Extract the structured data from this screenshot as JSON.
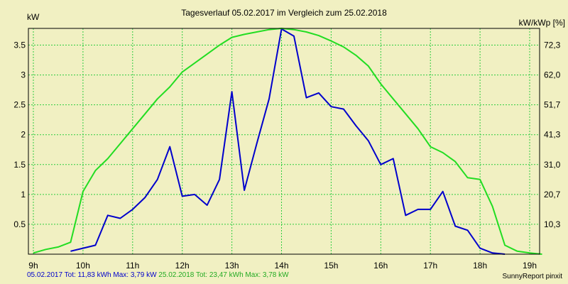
{
  "chart_data": {
    "type": "line",
    "title": "Tagesverlauf 05.02.2017 im Vergleich zum 25.02.2018",
    "ylabel_left": "kW",
    "ylabel_right": "kW/kWp [%]",
    "x_ticks": [
      "9h",
      "10h",
      "11h",
      "12h",
      "13h",
      "14h",
      "15h",
      "16h",
      "17h",
      "18h",
      "19h"
    ],
    "xlim": [
      8.9,
      19.2
    ],
    "ylim": [
      0,
      3.78
    ],
    "y_ticks_left": [
      "0.5",
      "1",
      "1.5",
      "2",
      "2.5",
      "3",
      "3.5"
    ],
    "y_ticks_left_values": [
      0.5,
      1,
      1.5,
      2,
      2.5,
      3,
      3.5
    ],
    "y_ticks_right": [
      "10,3",
      "20,7",
      "31,0",
      "41,3",
      "51,7",
      "62,0",
      "72,3"
    ],
    "grid": true,
    "colors": {
      "background": "#f1f0c2",
      "grid": "#2ecc40",
      "blue": "#0000cc",
      "green": "#22dd22"
    },
    "series": [
      {
        "name": "05.02.2017",
        "color": "#0000cc",
        "x": [
          9.75,
          10.0,
          10.25,
          10.5,
          10.75,
          11.0,
          11.25,
          11.5,
          11.75,
          12.0,
          12.25,
          12.5,
          12.75,
          13.0,
          13.25,
          13.5,
          13.75,
          14.0,
          14.25,
          14.5,
          14.75,
          15.0,
          15.25,
          15.5,
          15.75,
          16.0,
          16.25,
          16.5,
          16.75,
          17.0,
          17.25,
          17.5,
          17.75,
          18.0,
          18.25,
          18.5
        ],
        "y": [
          0.05,
          0.1,
          0.15,
          0.65,
          0.6,
          0.75,
          0.95,
          1.25,
          1.8,
          0.97,
          1.0,
          0.82,
          1.25,
          2.72,
          1.07,
          1.85,
          2.6,
          3.77,
          3.65,
          2.62,
          2.7,
          2.47,
          2.43,
          2.15,
          1.9,
          1.5,
          1.6,
          0.65,
          0.75,
          0.75,
          1.05,
          0.47,
          0.4,
          0.1,
          0.02,
          0.0
        ]
      },
      {
        "name": "25.02.2018",
        "color": "#22dd22",
        "x": [
          9.0,
          9.25,
          9.5,
          9.75,
          10.0,
          10.25,
          10.5,
          10.75,
          11.0,
          11.25,
          11.5,
          11.75,
          12.0,
          12.25,
          12.5,
          12.75,
          13.0,
          13.25,
          13.5,
          13.75,
          14.0,
          14.25,
          14.5,
          14.75,
          15.0,
          15.25,
          15.5,
          15.75,
          16.0,
          16.25,
          16.5,
          16.75,
          17.0,
          17.25,
          17.5,
          17.75,
          18.0,
          18.25,
          18.5,
          18.75,
          19.0,
          19.25
        ],
        "y": [
          0.02,
          0.08,
          0.12,
          0.2,
          1.05,
          1.4,
          1.6,
          1.85,
          2.1,
          2.35,
          2.6,
          2.8,
          3.05,
          3.2,
          3.35,
          3.5,
          3.63,
          3.68,
          3.72,
          3.76,
          3.78,
          3.76,
          3.72,
          3.66,
          3.57,
          3.47,
          3.33,
          3.15,
          2.85,
          2.6,
          2.35,
          2.1,
          1.8,
          1.7,
          1.55,
          1.28,
          1.25,
          0.8,
          0.15,
          0.05,
          0.02,
          0.0
        ]
      }
    ]
  },
  "footer": {
    "blue_text": "05.02.2017 Tot: 11,83 kWh Max: 3,79 kW",
    "green_text": "25.02.2018 Tot: 23,47 kWh Max: 3,78 kW"
  },
  "credit": "SunnyReport pinxit"
}
